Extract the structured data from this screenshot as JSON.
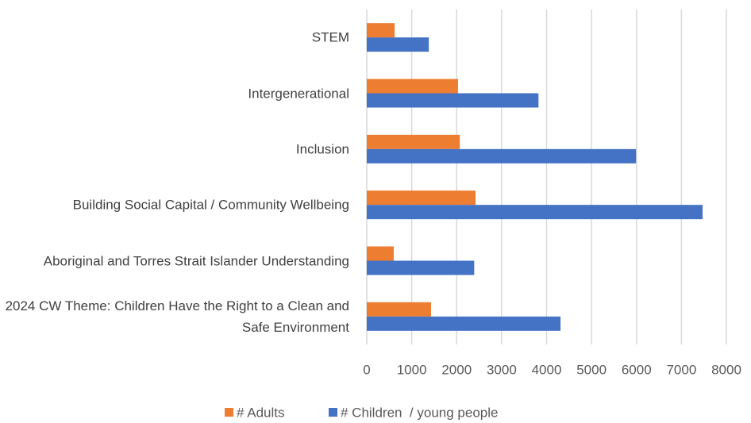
{
  "chart_data": {
    "type": "bar",
    "orientation": "horizontal",
    "categories": [
      "STEM",
      "Intergenerational",
      "Inclusion",
      "Building Social Capital / Community Wellbeing",
      "Aboriginal and Torres Strait Islander Understanding",
      "2024 CW Theme: Children Have the Right to a Clean and Safe Environment"
    ],
    "series": [
      {
        "name": "# Adults",
        "color": "#ed7d31",
        "values": [
          620,
          2030,
          2070,
          2420,
          600,
          1430
        ]
      },
      {
        "name": "# Children  / young people",
        "color": "#4472c4",
        "values": [
          1380,
          3820,
          5990,
          7470,
          2390,
          4310
        ]
      }
    ],
    "xlim": [
      0,
      8000
    ],
    "xticks": [
      0,
      1000,
      2000,
      3000,
      4000,
      5000,
      6000,
      7000,
      8000
    ],
    "grid": true,
    "legend": "bottom"
  }
}
